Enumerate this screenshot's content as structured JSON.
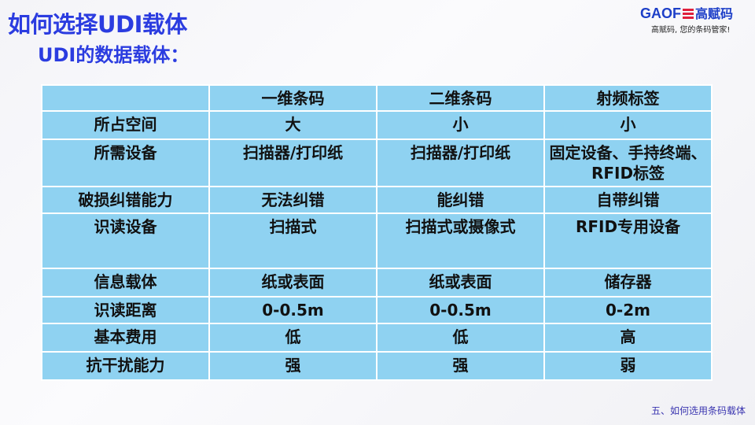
{
  "title": "如何选择UDI载体",
  "subtitle": "UDI的数据载体：",
  "logo": {
    "brand": "GAOF",
    "brand_cn": "高赋码",
    "tagline": "高赋码, 您的条码管家!"
  },
  "table": {
    "headers": [
      "",
      "一维条码",
      "二维条码",
      "射频标签"
    ],
    "rows": [
      [
        "所占空间",
        "大",
        "小",
        "小"
      ],
      [
        "所需设备",
        "扫描器/打印纸",
        "扫描器/打印纸",
        "固定设备、手持终端、RFID标签"
      ],
      [
        "破损纠错能力",
        "无法纠错",
        "能纠错",
        "自带纠错"
      ],
      [
        "识读设备",
        "扫描式",
        "扫描式或摄像式",
        "RFID专用设备"
      ],
      [
        "信息载体",
        "纸或表面",
        "纸或表面",
        "储存器"
      ],
      [
        "识读距离",
        "0-0.5m",
        "0-0.5m",
        "0-2m"
      ],
      [
        "基本费用",
        "低",
        "低",
        "高"
      ],
      [
        "抗干扰能力",
        "强",
        "强",
        "弱"
      ]
    ]
  },
  "footer": "五、如何选用条码载体",
  "colors": {
    "title": "#2b3ce0",
    "table_bg": "#8fd2f1",
    "logo": "#1d3fc8"
  }
}
